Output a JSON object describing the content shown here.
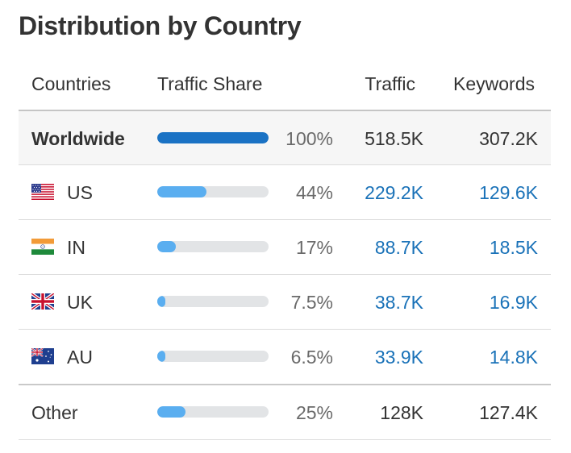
{
  "title": "Distribution by Country",
  "columns": {
    "countries": "Countries",
    "traffic_share": "Traffic Share",
    "traffic": "Traffic",
    "keywords": "Keywords"
  },
  "worldwide": {
    "name": "Worldwide",
    "share_pct": "100%",
    "share": 1.0,
    "traffic": "518.5K",
    "keywords": "307.2K"
  },
  "rows": [
    {
      "code": "US",
      "flag": "us-flag-icon",
      "share_pct": "44%",
      "share": 0.44,
      "traffic": "229.2K",
      "keywords": "129.6K"
    },
    {
      "code": "IN",
      "flag": "india-flag-icon",
      "share_pct": "17%",
      "share": 0.17,
      "traffic": "88.7K",
      "keywords": "18.5K"
    },
    {
      "code": "UK",
      "flag": "uk-flag-icon",
      "share_pct": "7.5%",
      "share": 0.075,
      "traffic": "38.7K",
      "keywords": "16.9K"
    },
    {
      "code": "AU",
      "flag": "australia-flag-icon",
      "share_pct": "6.5%",
      "share": 0.065,
      "traffic": "33.9K",
      "keywords": "14.8K"
    }
  ],
  "other": {
    "name": "Other",
    "share_pct": "25%",
    "share": 0.25,
    "traffic": "128K",
    "keywords": "127.4K"
  },
  "colors": {
    "bar_primary": "#1a72c4",
    "bar_secondary": "#5aaef0",
    "bar_track": "#e2e4e6",
    "link": "#1a72b8"
  }
}
